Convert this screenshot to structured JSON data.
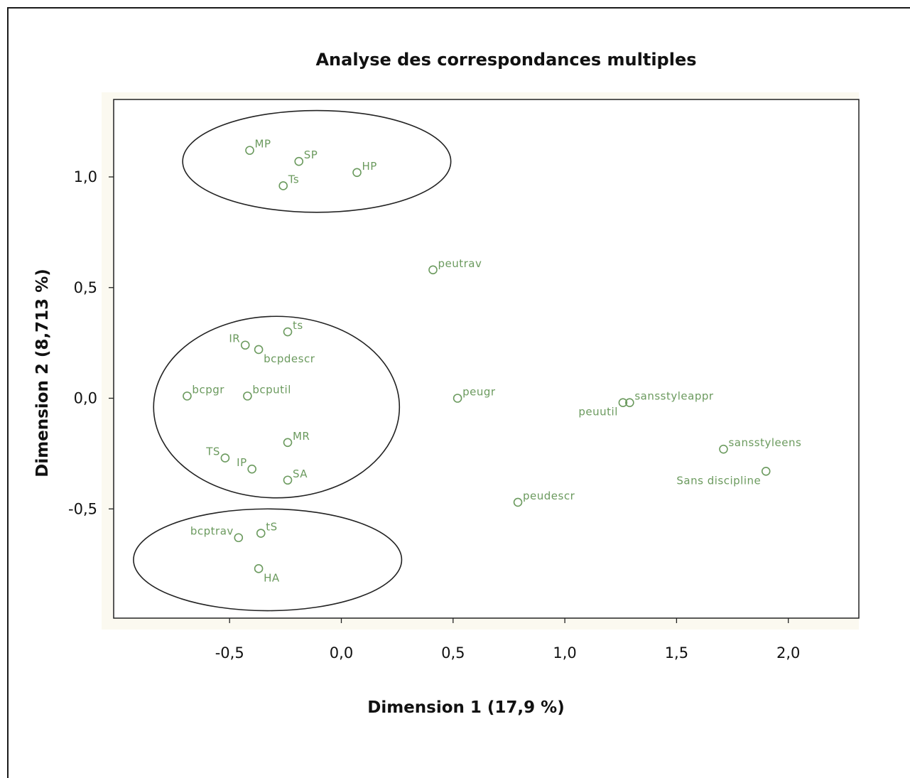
{
  "chart_data": {
    "type": "scatter",
    "title": "Analyse des correspondances multiples",
    "xlabel": "Dimension 1 (17,9 %)",
    "ylabel": "Dimension 2 (8,713 %)",
    "xlim": [
      -1.0,
      2.3
    ],
    "ylim": [
      -1.0,
      1.35
    ],
    "xticks": [
      -0.5,
      0.0,
      0.5,
      1.0,
      1.5,
      2.0
    ],
    "xtick_labels": [
      "-0,5",
      "0,0",
      "0,5",
      "1,0",
      "1,5",
      "2,0"
    ],
    "yticks": [
      1.0,
      0.5,
      0.0,
      -0.5
    ],
    "ytick_labels": [
      "1,0",
      "0,5",
      "0,0",
      "-0,5"
    ],
    "grid": false,
    "points": [
      {
        "label": "MP",
        "x": -0.41,
        "y": 1.12,
        "pos": "ur"
      },
      {
        "label": "SP",
        "x": -0.19,
        "y": 1.07,
        "pos": "ur"
      },
      {
        "label": "HP",
        "x": 0.07,
        "y": 1.02,
        "pos": "ur"
      },
      {
        "label": "Ts",
        "x": -0.26,
        "y": 0.96,
        "pos": "ur"
      },
      {
        "label": "peutrav",
        "x": 0.41,
        "y": 0.58,
        "pos": "ur"
      },
      {
        "label": "ts",
        "x": -0.24,
        "y": 0.3,
        "pos": "ur"
      },
      {
        "label": "IR",
        "x": -0.43,
        "y": 0.24,
        "pos": "ul"
      },
      {
        "label": "bcpdescr",
        "x": -0.37,
        "y": 0.22,
        "pos": "dr"
      },
      {
        "label": "bcpgr",
        "x": -0.69,
        "y": 0.01,
        "pos": "ur"
      },
      {
        "label": "bcputil",
        "x": -0.42,
        "y": 0.01,
        "pos": "ur"
      },
      {
        "label": "peugr",
        "x": 0.52,
        "y": 0.0,
        "pos": "ur"
      },
      {
        "label": "peuutil",
        "x": 1.26,
        "y": -0.02,
        "pos": "dl"
      },
      {
        "label": "sansstyleappr",
        "x": 1.29,
        "y": -0.02,
        "pos": "ur"
      },
      {
        "label": "MR",
        "x": -0.24,
        "y": -0.2,
        "pos": "ur"
      },
      {
        "label": "TS",
        "x": -0.52,
        "y": -0.27,
        "pos": "ul"
      },
      {
        "label": "IP",
        "x": -0.4,
        "y": -0.32,
        "pos": "ul"
      },
      {
        "label": "SA",
        "x": -0.24,
        "y": -0.37,
        "pos": "ur"
      },
      {
        "label": "sansstyleens",
        "x": 1.71,
        "y": -0.23,
        "pos": "ur"
      },
      {
        "label": "Sans discipline",
        "x": 1.9,
        "y": -0.33,
        "pos": "dl"
      },
      {
        "label": "peudescr",
        "x": 0.79,
        "y": -0.47,
        "pos": "ur"
      },
      {
        "label": "bcptrav",
        "x": -0.46,
        "y": -0.63,
        "pos": "ul"
      },
      {
        "label": "tS",
        "x": -0.36,
        "y": -0.61,
        "pos": "ur"
      },
      {
        "label": "HA",
        "x": -0.37,
        "y": -0.77,
        "pos": "dr"
      }
    ],
    "groups": [
      {
        "cx": -0.11,
        "cy": 1.07,
        "rx": 0.6,
        "ry": 0.23
      },
      {
        "cx": -0.29,
        "cy": -0.04,
        "rx": 0.55,
        "ry": 0.41
      },
      {
        "cx": -0.33,
        "cy": -0.73,
        "rx": 0.6,
        "ry": 0.23
      }
    ]
  }
}
